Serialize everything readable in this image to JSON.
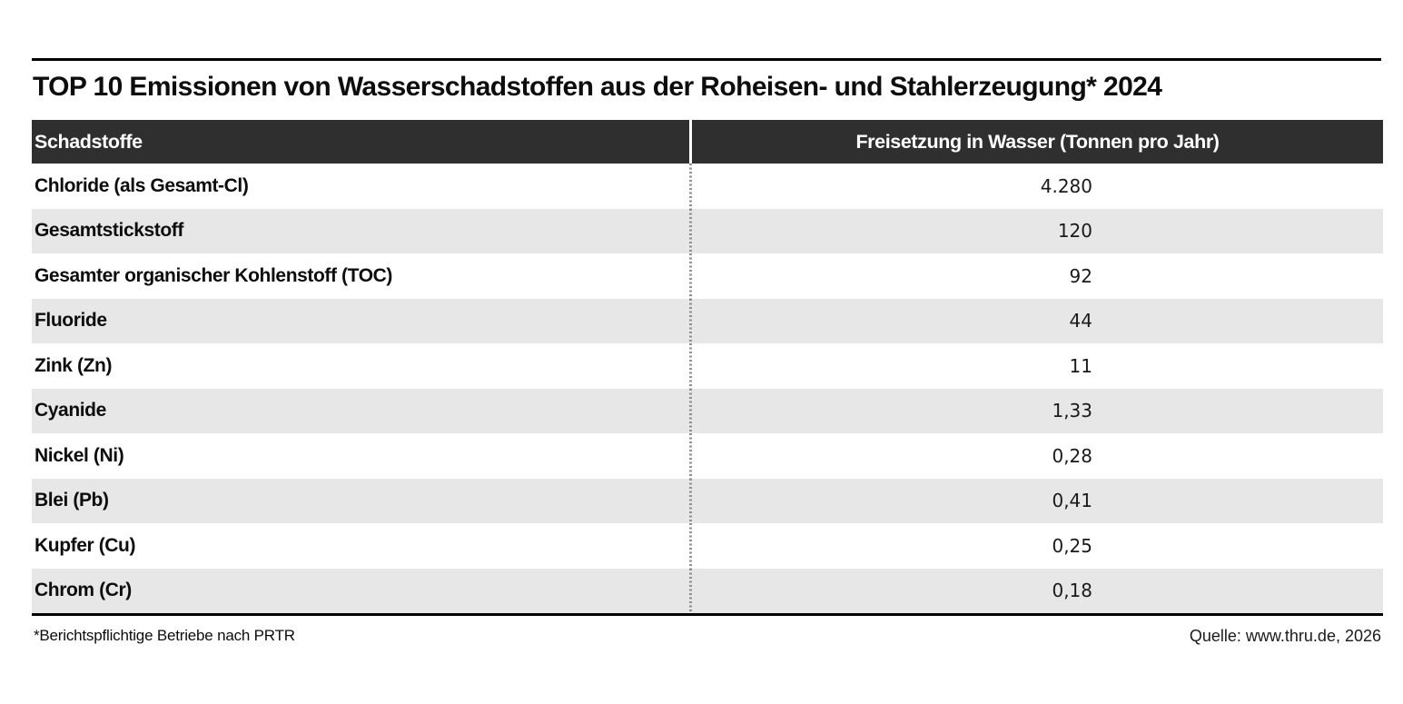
{
  "title": "TOP 10 Emissionen von Wasserschadstoffen aus der Roheisen- und Stahlerzeugung* 2024",
  "table": {
    "columns": {
      "pollutants": "Schadstoffe",
      "values": "Freisetzung in Wasser (Tonnen pro Jahr)"
    },
    "rows": [
      {
        "label": "Chloride (als Gesamt-Cl)",
        "value": "4.280"
      },
      {
        "label": "Gesamtstickstoff",
        "value": "120"
      },
      {
        "label": "Gesamter organischer Kohlenstoff (TOC)",
        "value": "92"
      },
      {
        "label": "Fluoride",
        "value": "44"
      },
      {
        "label": "Zink (Zn)",
        "value": "11"
      },
      {
        "label": "Cyanide",
        "value": "1,33"
      },
      {
        "label": "Nickel (Ni)",
        "value": "0,28"
      },
      {
        "label": "Blei (Pb)",
        "value": "0,41"
      },
      {
        "label": "Kupfer (Cu)",
        "value": "0,25"
      },
      {
        "label": "Chrom (Cr)",
        "value": "0,18"
      }
    ]
  },
  "footnote": "*Berichtspflichtige Betriebe nach PRTR",
  "source": "Quelle: www.thru.de, 2026",
  "colors": {
    "header_bg": "#2f2f2f",
    "header_text": "#ffffff",
    "row_alt_bg": "#e7e7e7",
    "rule": "#000000",
    "divider_dotted": "#8f8f8f"
  },
  "chart_data": {
    "type": "table",
    "title": "TOP 10 Emissionen von Wasserschadstoffen aus der Roheisen- und Stahlerzeugung* 2024",
    "columns": [
      "Schadstoffe",
      "Freisetzung in Wasser (Tonnen pro Jahr)"
    ],
    "categories": [
      "Chloride (als Gesamt-Cl)",
      "Gesamtstickstoff",
      "Gesamter organischer Kohlenstoff (TOC)",
      "Fluoride",
      "Zink (Zn)",
      "Cyanide",
      "Nickel (Ni)",
      "Blei (Pb)",
      "Kupfer (Cu)",
      "Chrom (Cr)"
    ],
    "values": [
      4280,
      120,
      92,
      44,
      11,
      1.33,
      0.28,
      0.41,
      0.25,
      0.18
    ],
    "values_display": [
      "4.280",
      "120",
      "92",
      "44",
      "11",
      "1,33",
      "0,28",
      "0,41",
      "0,25",
      "0,18"
    ],
    "unit": "Tonnen pro Jahr",
    "footnote": "*Berichtspflichtige Betriebe nach PRTR",
    "source": "Quelle: www.thru.de, 2026"
  }
}
